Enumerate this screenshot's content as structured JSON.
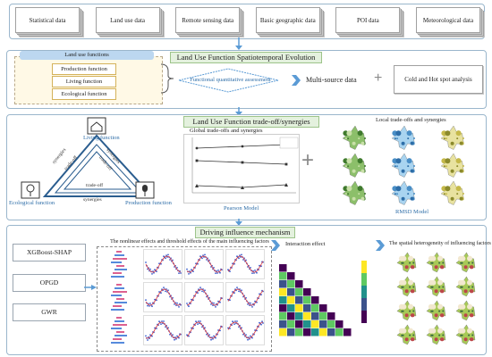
{
  "top_cards": [
    "Statistical data",
    "Land use data",
    "Remote sensing data",
    "Basic geographic data",
    "POI data",
    "Meteorological data"
  ],
  "section1": {
    "title": "Land Use Function Spatiotemporal Evolution",
    "lu_functions_title": "Land use functions",
    "functions": [
      "Production function",
      "Living function",
      "Ecological function"
    ],
    "assessment": "Functional quantitative assessment",
    "multi_source": "Multi-source data",
    "plus": "+",
    "hotspot": "Cold and Hot spot analysis"
  },
  "section2": {
    "title": "Land Use Function trade-off/synergies",
    "living": "Living function",
    "ecological": "Ecological function",
    "production": "Production function",
    "synergies": "synergies",
    "tradeoff": "trade-off",
    "global_title": "Global trade-offs and synergies",
    "pearson": "Pearson Model",
    "plus": "+",
    "local_title": "Local trade-offs and synergies",
    "rmsd": "RMSD Model"
  },
  "section3": {
    "title": "Driving influence mechanism",
    "methods": [
      "XGBoost-SHAP",
      "OPGD",
      "GWR"
    ],
    "nonlinear_title": "The nonlinear effects and threshold effects of the main influencing factors",
    "interaction": "Interaction effect",
    "spatial": "The spatial heterogeneity of influencing factors"
  },
  "colors": {
    "section_border": "#9ab6cc",
    "title_fill": "#e4f1de",
    "arrow": "#5b9bd5",
    "triangle": "#2a5d8f"
  }
}
